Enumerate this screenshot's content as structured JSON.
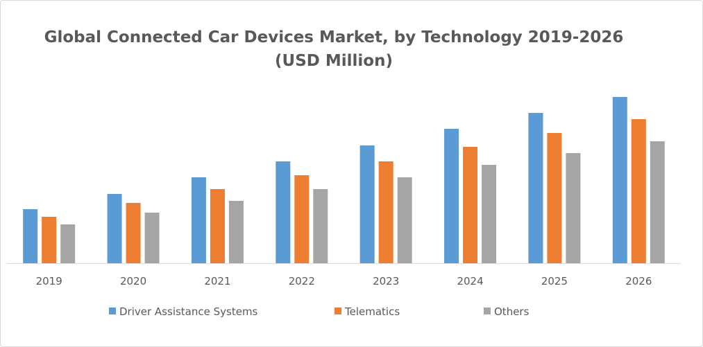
{
  "chart_data": {
    "type": "bar",
    "title_line1": "Global Connected Car Devices Market, by Technology 2019-2026",
    "title_line2": "(USD Million)",
    "categories": [
      "2019",
      "2020",
      "2021",
      "2022",
      "2023",
      "2024",
      "2025",
      "2026"
    ],
    "series": [
      {
        "name": "Driver Assistance Systems",
        "color": "#5B9BD5",
        "values": [
          78,
          100,
          124,
          147,
          170,
          194,
          217,
          240
        ]
      },
      {
        "name": "Telematics",
        "color": "#ED7D31",
        "values": [
          67,
          87,
          107,
          127,
          147,
          168,
          188,
          208
        ]
      },
      {
        "name": "Others",
        "color": "#A5A5A5",
        "values": [
          56,
          73,
          90,
          107,
          124,
          142,
          159,
          176
        ]
      }
    ],
    "ylim": [
      0,
      250
    ],
    "y_axis_visible": false,
    "grid": false,
    "legend_position": "bottom"
  }
}
